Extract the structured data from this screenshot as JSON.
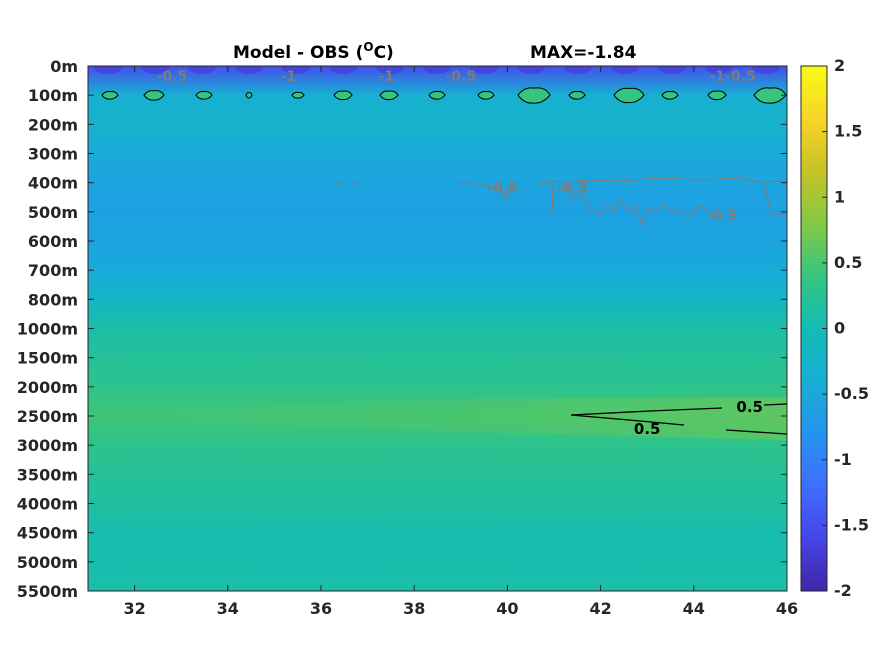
{
  "chart_data": {
    "type": "heatmap",
    "title": "Model - OBS (°C)",
    "title_main": "Model - OBS (",
    "title_degree": "O",
    "title_unit": "C)",
    "annotation": "MAX=-1.84",
    "x_ticks": [
      "32",
      "34",
      "36",
      "38",
      "40",
      "42",
      "44",
      "46"
    ],
    "x_tick_values": [
      32,
      34,
      36,
      38,
      40,
      42,
      44,
      46
    ],
    "xlim": [
      31,
      46
    ],
    "y_ticks": [
      "0m",
      "100m",
      "200m",
      "300m",
      "400m",
      "500m",
      "600m",
      "700m",
      "800m",
      "1000m",
      "1500m",
      "2000m",
      "2500m",
      "3000m",
      "3500m",
      "4000m",
      "4500m",
      "5000m",
      "5500m"
    ],
    "colorbar": {
      "ticks": [
        "2",
        "1.5",
        "1",
        "0.5",
        "0",
        "-0.5",
        "-1",
        "-1.5",
        "-2"
      ],
      "tick_values": [
        2,
        1.5,
        1,
        0.5,
        0,
        -0.5,
        -1,
        -1.5,
        -2
      ],
      "range": [
        -2,
        2
      ],
      "colormap": "parula",
      "colors": [
        "#3e26a8",
        "#4744e8",
        "#3e6ffc",
        "#2594ef",
        "#17aed6",
        "#13bcb5",
        "#35c57e",
        "#84c844",
        "#c7c229",
        "#f8d427",
        "#f9fb14"
      ]
    },
    "depth_profile": [
      {
        "depth": "0m",
        "value": -1.5
      },
      {
        "depth": "100m",
        "value": -0.35
      },
      {
        "depth": "200m",
        "value": -0.25
      },
      {
        "depth": "300m",
        "value": -0.45
      },
      {
        "depth": "400m",
        "value": -0.55
      },
      {
        "depth": "500m",
        "value": -0.6
      },
      {
        "depth": "600m",
        "value": -0.55
      },
      {
        "depth": "700m",
        "value": -0.45
      },
      {
        "depth": "800m",
        "value": -0.2
      },
      {
        "depth": "1000m",
        "value": 0.1
      },
      {
        "depth": "1500m",
        "value": 0.2
      },
      {
        "depth": "2000m",
        "value": 0.3
      },
      {
        "depth": "2500m",
        "value": 0.45
      },
      {
        "depth": "3000m",
        "value": 0.3
      },
      {
        "depth": "3500m",
        "value": 0.2
      },
      {
        "depth": "4000m",
        "value": 0.15
      },
      {
        "depth": "4500m",
        "value": 0.05
      },
      {
        "depth": "5000m",
        "value": 0.05
      },
      {
        "depth": "5500m",
        "value": 0.1
      }
    ],
    "contour_labels": [
      {
        "text": "0.5",
        "x": 45.2,
        "depth": "2500m",
        "color": "black"
      },
      {
        "text": "0.5",
        "x": 43.0,
        "depth": "2500m",
        "color": "black"
      },
      {
        "text": "-0.5",
        "x": 32.8,
        "depth": "0m",
        "color": "gray"
      },
      {
        "text": "-1",
        "x": 35.3,
        "depth": "0m",
        "color": "gray"
      },
      {
        "text": "-1",
        "x": 37.4,
        "depth": "0m",
        "color": "gray"
      },
      {
        "text": "-0.5",
        "x": 39.0,
        "depth": "0m",
        "color": "gray"
      },
      {
        "text": "-1",
        "x": 44.5,
        "depth": "0m",
        "color": "gray"
      },
      {
        "text": "-0.5",
        "x": 45.0,
        "depth": "0m",
        "color": "gray"
      },
      {
        "text": "-0.5",
        "x": 39.9,
        "depth": "400m",
        "color": "gray"
      },
      {
        "text": "-0.5",
        "x": 41.4,
        "depth": "400m",
        "color": "gray"
      },
      {
        "text": "-0.5",
        "x": 44.6,
        "depth": "500m",
        "color": "gray"
      }
    ]
  }
}
